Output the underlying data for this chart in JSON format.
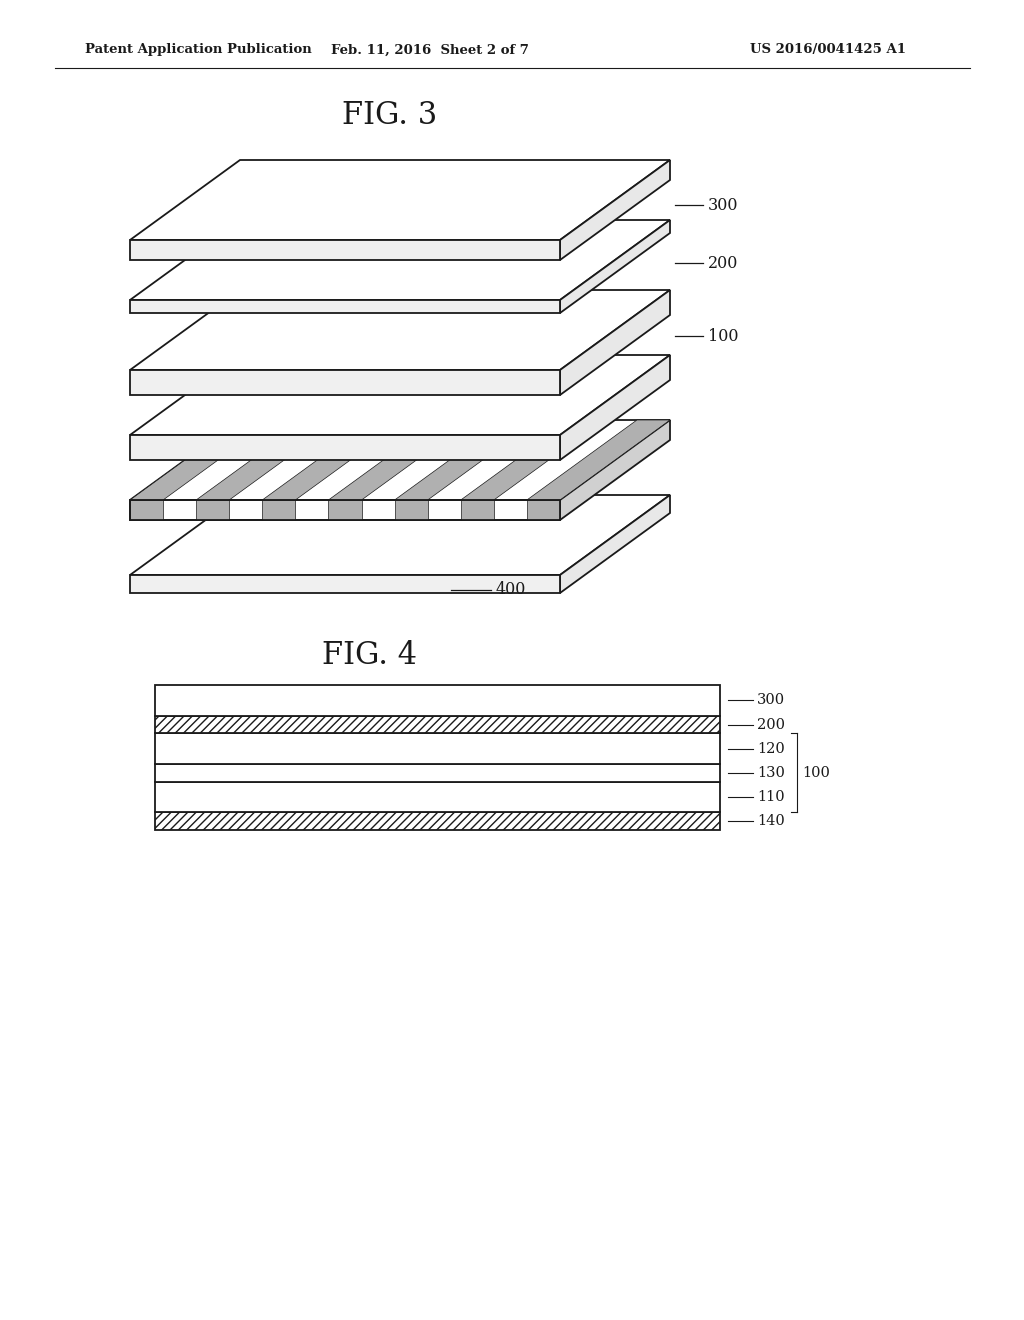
{
  "header_left": "Patent Application Publication",
  "header_mid": "Feb. 11, 2016  Sheet 2 of 7",
  "header_right": "US 2016/0041425 A1",
  "fig3_title": "FIG. 3",
  "fig4_title": "FIG. 4",
  "bg_color": "#ffffff",
  "line_color": "#1a1a1a"
}
